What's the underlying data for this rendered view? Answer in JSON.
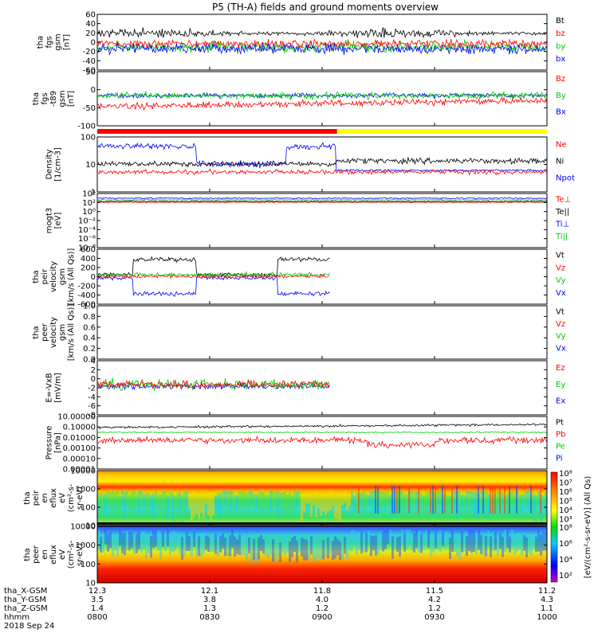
{
  "chart_data": {
    "title": "P5 (TH-A) fields and ground moments overview",
    "type": "line",
    "panels": [
      {
        "id": "fgs",
        "ylabel": [
          "tha",
          "fgs",
          "gsm",
          "[nT]"
        ],
        "ylim": [
          -60,
          60
        ],
        "yticks": [
          "60",
          "40",
          "20",
          "0",
          "-20",
          "-40",
          "-60"
        ],
        "legend": [
          {
            "name": "Bt",
            "color": "#000000"
          },
          {
            "name": "bz",
            "color": "#ff0000"
          },
          {
            "name": "by",
            "color": "#00cc00"
          },
          {
            "name": "bx",
            "color": "#0000ff"
          }
        ]
      },
      {
        "id": "fgs-t89",
        "ylabel": [
          "tha",
          "fgs",
          "-t89",
          "gsm",
          "[nT]"
        ],
        "ylim": [
          -120,
          60
        ],
        "yticks": [
          "50",
          "0",
          "-50",
          "-100"
        ],
        "legend": [
          {
            "name": "Bz",
            "color": "#ff0000"
          },
          {
            "name": "By",
            "color": "#00cc00"
          },
          {
            "name": "Bx",
            "color": "#0000ff"
          }
        ]
      },
      {
        "id": "density",
        "ylabel": [
          "Density",
          "[1/cm-3]"
        ],
        "scale": "log",
        "yticks": [
          "100",
          "10",
          "1"
        ],
        "legend": [
          {
            "name": "Ne",
            "color": "#ff0000"
          },
          {
            "name": "Ni",
            "color": "#000000"
          },
          {
            "name": "Npot",
            "color": "#0000ff"
          }
        ]
      },
      {
        "id": "temperature",
        "ylabel": [
          "mogt3",
          "[eV]"
        ],
        "scale": "log",
        "yticks": [
          "10⁴",
          "10²",
          "10⁰",
          "10⁻²",
          "10⁻⁴",
          "10⁻⁶",
          "10⁻⁸"
        ],
        "legend": [
          {
            "name": "Te⊥",
            "color": "#ff0000"
          },
          {
            "name": "Te||",
            "color": "#000000"
          },
          {
            "name": "Ti⊥",
            "color": "#0000ff"
          },
          {
            "name": "Ti||",
            "color": "#00cc00"
          }
        ]
      },
      {
        "id": "peir-velocity",
        "ylabel": [
          "tha",
          "peir",
          "velocity",
          "gsm",
          "[km/s (All Qs)]"
        ],
        "ylim": [
          -600,
          600
        ],
        "yticks": [
          "600",
          "400",
          "200",
          "0",
          "-200",
          "-400",
          "-600"
        ],
        "legend": [
          {
            "name": "Vt",
            "color": "#000000"
          },
          {
            "name": "Vz",
            "color": "#ff0000"
          },
          {
            "name": "Vy",
            "color": "#00cc00"
          },
          {
            "name": "Vx",
            "color": "#0000ff"
          }
        ]
      },
      {
        "id": "peer-velocity",
        "ylabel": [
          "tha",
          "peer",
          "velocity",
          "gsm",
          "[km/s (All Qs)]"
        ],
        "ylim": [
          0,
          1
        ],
        "yticks": [
          "1.0",
          "0.8",
          "0.6",
          "0.4",
          "0.2",
          "0.0"
        ],
        "legend": [
          {
            "name": "Vt",
            "color": "#000000"
          },
          {
            "name": "Vz",
            "color": "#ff0000"
          },
          {
            "name": "Vy",
            "color": "#00cc00"
          },
          {
            "name": "Vx",
            "color": "#0000ff"
          }
        ]
      },
      {
        "id": "efield",
        "ylabel": [
          "E=-VxB",
          "[mV/m]"
        ],
        "ylim": [
          -8,
          4
        ],
        "yticks": [
          "4",
          "2",
          "0",
          "-2",
          "-4",
          "-6",
          "-8"
        ],
        "legend": [
          {
            "name": "Ez",
            "color": "#ff0000"
          },
          {
            "name": "Ey",
            "color": "#00cc00"
          },
          {
            "name": "Ex",
            "color": "#0000ff"
          }
        ]
      },
      {
        "id": "pressure",
        "ylabel": [
          "Pressure",
          "[nPa]"
        ],
        "scale": "log",
        "yticks": [
          "10.00000",
          "0.10000",
          "0.01000",
          "0.00100",
          "0.00010",
          "0.00001"
        ],
        "legend": [
          {
            "name": "Pt",
            "color": "#000000"
          },
          {
            "name": "Pb",
            "color": "#ff0000"
          },
          {
            "name": "Pe",
            "color": "#00cc00"
          },
          {
            "name": "Pi",
            "color": "#0000ff"
          }
        ]
      },
      {
        "id": "peir-spec",
        "ylabel": [
          "tha",
          "peir",
          "en",
          "eflux",
          "eV",
          "(cm²-s-",
          "sr-eV)"
        ],
        "scale": "log",
        "yticks": [
          "10000",
          "1000",
          "100",
          "10"
        ]
      },
      {
        "id": "peer-spec",
        "ylabel": [
          "tha",
          "peer",
          "en",
          "eflux",
          "eV",
          "(cm²-s-",
          "sr-eV)"
        ],
        "scale": "log",
        "yticks": [
          "10000",
          "1000",
          "100",
          "10"
        ]
      }
    ],
    "colorbar": {
      "label": "[eV/(cm²-s-sr-eV)] (All Qs)",
      "ticks_upper": [
        "10⁸",
        "10⁷",
        "10⁶",
        "10⁵",
        "10⁴",
        "10³"
      ],
      "ticks_lower": [
        "10⁸",
        "10⁶",
        "10⁴",
        "10²"
      ]
    },
    "mode_bar": [
      {
        "start": "0800",
        "end": "0904",
        "color": "#ff0000"
      },
      {
        "start": "0904",
        "end": "1000",
        "color": "#ffff00"
      }
    ],
    "x_axis": {
      "rows": [
        {
          "label": "tha_X-GSM",
          "values": [
            "12.3",
            "12.1",
            "11.8",
            "11.5",
            "11.2"
          ]
        },
        {
          "label": "tha_Y-GSM",
          "values": [
            "3.5",
            "3.8",
            "4.0",
            "4.2",
            "4.3"
          ]
        },
        {
          "label": "tha_Z-GSM",
          "values": [
            "1.4",
            "1.3",
            "1.2",
            "1.2",
            "1.1"
          ]
        },
        {
          "label": "hhmm",
          "values": [
            "0800",
            "0830",
            "0900",
            "0930",
            "1000"
          ]
        }
      ],
      "date": "2018 Sep 24"
    },
    "colors": {
      "bt": "#000000",
      "z": "#ff0000",
      "y": "#00cc00",
      "x": "#0000ff"
    }
  }
}
